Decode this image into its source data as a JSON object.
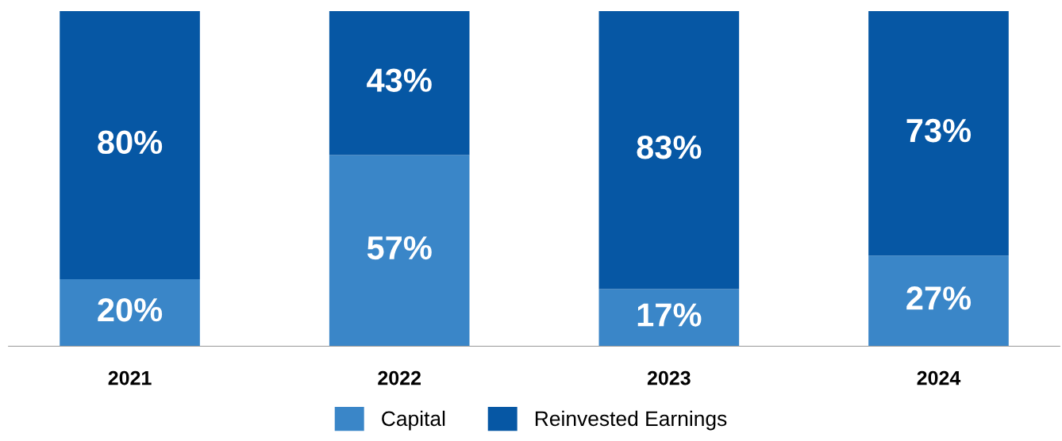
{
  "chart_data": {
    "type": "bar",
    "stacked": true,
    "categories": [
      "2021",
      "2022",
      "2023",
      "2024"
    ],
    "series": [
      {
        "name": "Capital",
        "color": "#3a86c8",
        "values": [
          20,
          57,
          17,
          27
        ],
        "value_labels": [
          "20%",
          "57%",
          "17%",
          "27%"
        ]
      },
      {
        "name": "Reinvested Earnings",
        "color": "#0657a4",
        "values": [
          80,
          43,
          83,
          73
        ],
        "value_labels": [
          "80%",
          "43%",
          "83%",
          "73%"
        ]
      }
    ],
    "legend": "bottom",
    "grid": false
  }
}
